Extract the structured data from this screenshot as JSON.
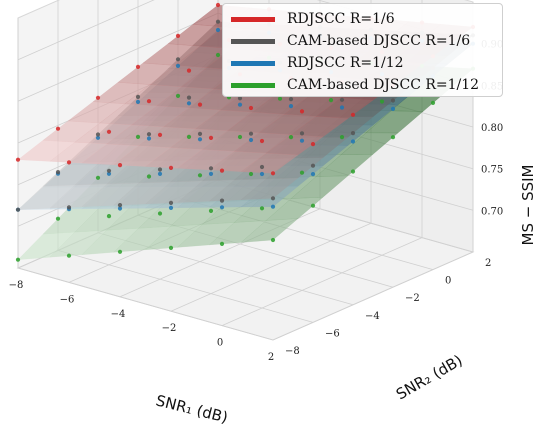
{
  "chart_data": {
    "type": "surface3d",
    "xlabel": "SNR₁ (dB)",
    "ylabel": "SNR₂ (dB)",
    "zlabel": "MS − SSIM",
    "x_ticks": [
      "−8",
      "−6",
      "−4",
      "−2",
      "0",
      "2"
    ],
    "y_ticks": [
      "−8",
      "−6",
      "−4",
      "−2",
      "0",
      "2"
    ],
    "z_ticks": [
      "0.70",
      "0.75",
      "0.80",
      "0.85",
      "0.90"
    ],
    "xlim": [
      -8,
      2
    ],
    "ylim": [
      -8,
      2
    ],
    "zlim": [
      0.65,
      0.95
    ],
    "grid": true,
    "legend_position": "top-right",
    "x": [
      -8,
      -6,
      -4,
      -2,
      0,
      2
    ],
    "y": [
      -8,
      -6,
      -4,
      -2,
      0,
      2
    ],
    "series": [
      {
        "name": "RDJSCC R=1/6",
        "color": "#d62728",
        "corners": {
          "x-8_y-8": 0.78,
          "x2_y-8": 0.85,
          "x-8_y2": 0.86,
          "x2_y2": 0.92
        }
      },
      {
        "name": "CAM-based DJSCC R=1/6",
        "color": "#555555",
        "corners": {
          "x-8_y-8": 0.72,
          "x2_y-8": 0.82,
          "x-8_y2": 0.84,
          "x2_y2": 0.91
        }
      },
      {
        "name": "RDJSCC R=1/12",
        "color": "#1f77b4",
        "corners": {
          "x-8_y-8": 0.72,
          "x2_y-8": 0.81,
          "x-8_y2": 0.83,
          "x2_y2": 0.9
        }
      },
      {
        "name": "CAM-based DJSCC R=1/12",
        "color": "#2ca02c",
        "corners": {
          "x-8_y-8": 0.66,
          "x2_y-8": 0.77,
          "x-8_y2": 0.8,
          "x2_y2": 0.87
        }
      }
    ]
  },
  "legend": {
    "entries": [
      {
        "label": "RDJSCC R=1/6",
        "color": "#d62728"
      },
      {
        "label": "CAM-based DJSCC R=1/6",
        "color": "#555555"
      },
      {
        "label": "RDJSCC R=1/12",
        "color": "#1f77b4"
      },
      {
        "label": "CAM-based DJSCC R=1/12",
        "color": "#2ca02c"
      }
    ]
  }
}
